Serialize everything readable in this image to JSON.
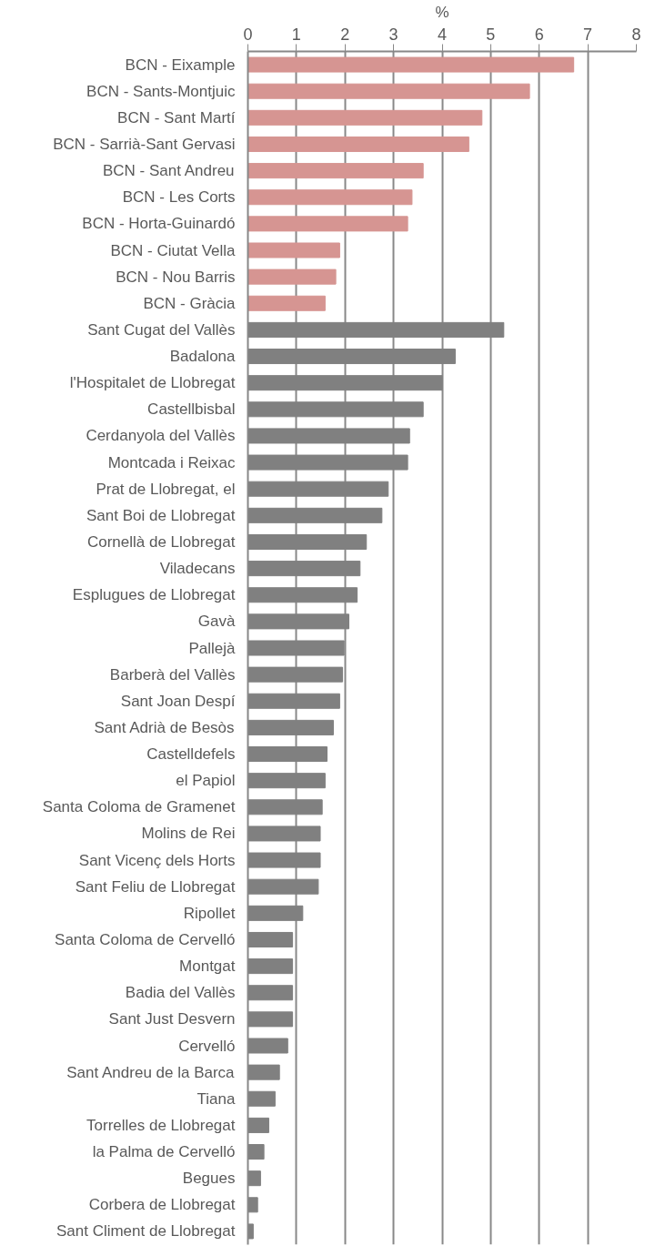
{
  "chart_data": {
    "type": "bar",
    "orientation": "horizontal",
    "xlabel": "%",
    "categories": [
      "BCN - Eixample",
      "BCN - Sants-Montjuic",
      "BCN - Sant Martí",
      "BCN - Sarrià-Sant Gervasi",
      "BCN - Sant Andreu",
      "BCN - Les Corts",
      "BCN - Horta-Guinardó",
      "BCN - Ciutat Vella",
      "BCN - Nou Barris",
      "BCN - Gràcia",
      "Sant Cugat del Vallès",
      "Badalona",
      "l'Hospitalet de Llobregat",
      "Castellbisbal",
      "Cerdanyola del Vallès",
      "Montcada i Reixac",
      "Prat de Llobregat, el",
      "Sant Boi de Llobregat",
      "Cornellà de Llobregat",
      "Viladecans",
      "Esplugues de Llobregat",
      "Gavà",
      "Pallejà",
      "Barberà del Vallès",
      "Sant Joan Despí",
      "Sant Adrià de Besòs",
      "Castelldefels",
      "el Papiol",
      "Santa Coloma de Gramenet",
      "Molins de Rei",
      "Sant Vicenç dels Horts",
      "Sant Feliu de Llobregat",
      "Ripollet",
      "Santa Coloma de Cervelló",
      "Montgat",
      "Badia del Vallès",
      "Sant Just Desvern",
      "Cervelló",
      "Sant Andreu de la Barca",
      "Tiana",
      "Torrelles de Llobregat",
      "la Palma de Cervelló",
      "Begues",
      "Corbera de Llobregat",
      "Sant Climent de Llobregat"
    ],
    "values": [
      6.71,
      5.8,
      4.82,
      4.55,
      3.61,
      3.38,
      3.29,
      1.89,
      1.81,
      1.59,
      5.27,
      4.27,
      4.0,
      3.61,
      3.33,
      3.29,
      2.89,
      2.76,
      2.44,
      2.31,
      2.25,
      2.08,
      1.98,
      1.95,
      1.89,
      1.76,
      1.63,
      1.59,
      1.53,
      1.49,
      1.49,
      1.45,
      1.13,
      0.92,
      0.92,
      0.92,
      0.92,
      0.82,
      0.65,
      0.56,
      0.43,
      0.33,
      0.26,
      0.2,
      0.11
    ],
    "colors": [
      "#d69592",
      "#d69592",
      "#d69592",
      "#d69592",
      "#d69592",
      "#d69592",
      "#d69592",
      "#d69592",
      "#d69592",
      "#d69592",
      "#808080",
      "#808080",
      "#808080",
      "#808080",
      "#808080",
      "#808080",
      "#808080",
      "#808080",
      "#808080",
      "#808080",
      "#808080",
      "#808080",
      "#808080",
      "#808080",
      "#808080",
      "#808080",
      "#808080",
      "#808080",
      "#808080",
      "#808080",
      "#808080",
      "#808080",
      "#808080",
      "#808080",
      "#808080",
      "#808080",
      "#808080",
      "#808080",
      "#808080",
      "#808080",
      "#808080",
      "#808080",
      "#808080",
      "#808080",
      "#808080"
    ],
    "xlim": [
      0,
      8
    ],
    "xticks": [
      0,
      1,
      2,
      3,
      4,
      5,
      6,
      7,
      8
    ],
    "grid": "x"
  }
}
